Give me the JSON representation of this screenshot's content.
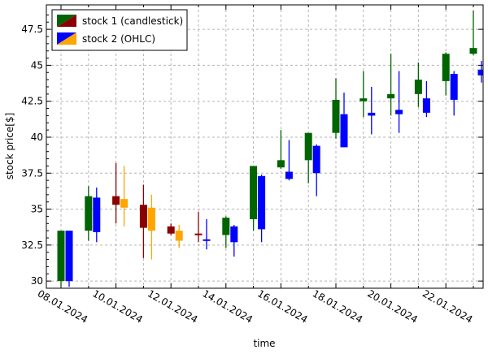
{
  "chart_data": {
    "type": "candlestick",
    "title": "",
    "xlabel": "time",
    "ylabel": "stock price[$]",
    "ylim": [
      29.5,
      49.2
    ],
    "yticks": [
      30,
      32.5,
      35,
      37.5,
      40,
      42.5,
      45,
      47.5
    ],
    "ytick_labels": [
      "30",
      "32.5",
      "35",
      "37.5",
      "40",
      "42.5",
      "45",
      "47.5"
    ],
    "xticks": [
      "08.01.2024",
      "10.01.2024",
      "12.01.2024",
      "14.01.2024",
      "16.01.2024",
      "18.01.2024",
      "20.01.2024",
      "22.01.2024"
    ],
    "grid": true,
    "legend_position": "top-left",
    "colors": {
      "s1_up": "#006400",
      "s1_down": "#8b0000",
      "s2_up": "#0000ff",
      "s2_down": "#ffa500"
    },
    "series": [
      {
        "name": "stock 1 (candlestick)",
        "style": "candlestick",
        "data": [
          {
            "date": "08.01.2024",
            "open": 30.0,
            "high": 33.5,
            "low": 29.6,
            "close": 33.5
          },
          {
            "date": "09.01.2024",
            "open": 33.5,
            "high": 36.6,
            "low": 32.8,
            "close": 35.9
          },
          {
            "date": "10.01.2024",
            "open": 35.9,
            "high": 38.2,
            "low": 34.0,
            "close": 35.3
          },
          {
            "date": "11.01.2024",
            "open": 35.3,
            "high": 36.7,
            "low": 31.6,
            "close": 33.7
          },
          {
            "date": "12.01.2024",
            "open": 33.8,
            "high": 34.0,
            "low": 33.2,
            "close": 33.3
          },
          {
            "date": "13.01.2024",
            "open": 33.3,
            "high": 34.8,
            "low": 32.7,
            "close": 33.2
          },
          {
            "date": "14.01.2024",
            "open": 33.2,
            "high": 34.5,
            "low": 32.3,
            "close": 34.4
          },
          {
            "date": "15.01.2024",
            "open": 34.3,
            "high": 38.0,
            "low": 33.5,
            "close": 38.0
          },
          {
            "date": "16.01.2024",
            "open": 37.9,
            "high": 40.5,
            "low": 37.8,
            "close": 38.4
          },
          {
            "date": "17.01.2024",
            "open": 38.4,
            "high": 40.3,
            "low": 36.8,
            "close": 40.3
          },
          {
            "date": "18.01.2024",
            "open": 40.3,
            "high": 44.1,
            "low": 39.9,
            "close": 42.6
          },
          {
            "date": "19.01.2024",
            "open": 42.5,
            "high": 44.6,
            "low": 41.4,
            "close": 42.7
          },
          {
            "date": "20.01.2024",
            "open": 42.7,
            "high": 45.8,
            "low": 41.5,
            "close": 43.0
          },
          {
            "date": "21.01.2024",
            "open": 43.0,
            "high": 45.2,
            "low": 42.1,
            "close": 44.0
          },
          {
            "date": "22.01.2024",
            "open": 43.9,
            "high": 45.9,
            "low": 42.9,
            "close": 45.8
          },
          {
            "date": "23.01.2024",
            "open": 45.8,
            "high": 48.8,
            "low": 45.7,
            "close": 46.2
          }
        ]
      },
      {
        "name": "stock 2 (OHLC)",
        "style": "ohlc",
        "data": [
          {
            "date": "08.01.2024",
            "open": 30.0,
            "high": 33.5,
            "low": 29.6,
            "close": 33.5
          },
          {
            "date": "09.01.2024",
            "open": 33.4,
            "high": 36.5,
            "low": 32.7,
            "close": 35.8
          },
          {
            "date": "10.01.2024",
            "open": 35.7,
            "high": 38.0,
            "low": 33.8,
            "close": 35.1
          },
          {
            "date": "11.01.2024",
            "open": 35.1,
            "high": 36.0,
            "low": 31.5,
            "close": 33.5
          },
          {
            "date": "12.01.2024",
            "open": 33.5,
            "high": 33.9,
            "low": 32.3,
            "close": 32.8
          },
          {
            "date": "13.01.2024",
            "open": 32.8,
            "high": 34.3,
            "low": 32.2,
            "close": 32.9
          },
          {
            "date": "14.01.2024",
            "open": 32.7,
            "high": 33.9,
            "low": 31.7,
            "close": 33.8
          },
          {
            "date": "15.01.2024",
            "open": 33.6,
            "high": 37.4,
            "low": 32.7,
            "close": 37.3
          },
          {
            "date": "16.01.2024",
            "open": 37.1,
            "high": 39.8,
            "low": 37.0,
            "close": 37.6
          },
          {
            "date": "17.01.2024",
            "open": 37.5,
            "high": 39.5,
            "low": 35.9,
            "close": 39.4
          },
          {
            "date": "18.01.2024",
            "open": 39.3,
            "high": 43.1,
            "low": 39.3,
            "close": 41.6
          },
          {
            "date": "19.01.2024",
            "open": 41.5,
            "high": 43.5,
            "low": 40.2,
            "close": 41.7
          },
          {
            "date": "20.01.2024",
            "open": 41.6,
            "high": 44.6,
            "low": 40.3,
            "close": 41.9
          },
          {
            "date": "21.01.2024",
            "open": 41.7,
            "high": 43.9,
            "low": 41.4,
            "close": 42.7
          },
          {
            "date": "22.01.2024",
            "open": 42.6,
            "high": 44.6,
            "low": 41.5,
            "close": 44.4
          },
          {
            "date": "23.01.2024",
            "open": 44.3,
            "high": 45.3,
            "low": 43.8,
            "close": 44.7
          }
        ]
      }
    ]
  }
}
